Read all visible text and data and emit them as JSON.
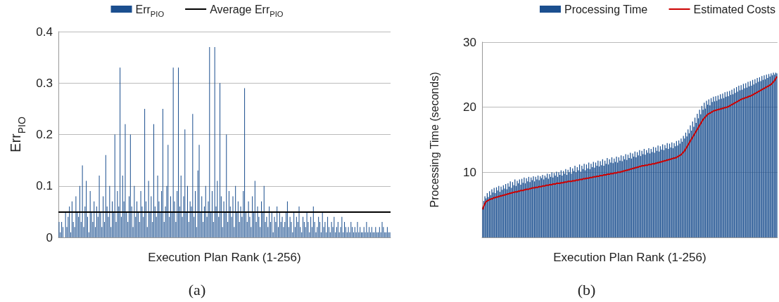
{
  "chart_data": [
    {
      "type": "bar",
      "title": "(a)",
      "xlabel": "Execution Plan Rank (1-256)",
      "ylabel": "Err$_{PIO}$",
      "ylim": [
        0,
        0.4
      ],
      "yticks": [
        0,
        0.1,
        0.2,
        0.3,
        0.4
      ],
      "grid": "y",
      "legend": "top",
      "categories": [
        null,
        null,
        null,
        null,
        null,
        null,
        null,
        null,
        null,
        null,
        null,
        null,
        null,
        null,
        null,
        null,
        null,
        null,
        null,
        null,
        null,
        null,
        null,
        null,
        null,
        null,
        null,
        null,
        null,
        null,
        null,
        null,
        null,
        null,
        null,
        null,
        null,
        null,
        null,
        null,
        null,
        null,
        null,
        null,
        null,
        null,
        null,
        null,
        null,
        null,
        null,
        null,
        null,
        null,
        null,
        null,
        null,
        null,
        null,
        null,
        null,
        null,
        null,
        null,
        null,
        null,
        null,
        null,
        null,
        null,
        null,
        null,
        null,
        null,
        null,
        null,
        null,
        null,
        null,
        null,
        null,
        null,
        null,
        null,
        null,
        null,
        null,
        null,
        null,
        null,
        null,
        null,
        null,
        null,
        null,
        null,
        null,
        null,
        null,
        null,
        null,
        null,
        null,
        null,
        null,
        null,
        null,
        null,
        null,
        null,
        null,
        null,
        null,
        null,
        null,
        null,
        null,
        null,
        null,
        null,
        null,
        null,
        null,
        null,
        null,
        null,
        null,
        null,
        null,
        null,
        null,
        null,
        null,
        null,
        null,
        null,
        null,
        null,
        null,
        null,
        null,
        null,
        null,
        null,
        null,
        null,
        null,
        null,
        null,
        null,
        null,
        null,
        null,
        null,
        null,
        null,
        null,
        null,
        null,
        null,
        null,
        null,
        null,
        null,
        null,
        null,
        null,
        null,
        null,
        null,
        null,
        null,
        null,
        null,
        null,
        null,
        null,
        null,
        null,
        null,
        null,
        null,
        null,
        null,
        null,
        null,
        null,
        null,
        null,
        null,
        null,
        null,
        null,
        null,
        null,
        null,
        null,
        null,
        null,
        null,
        null,
        null,
        null,
        null,
        null,
        null,
        null,
        null,
        null,
        null,
        null,
        null,
        null,
        null,
        null,
        null,
        null,
        null,
        null,
        null,
        null,
        null,
        null,
        null,
        null,
        null,
        null,
        null,
        null,
        null,
        null,
        null,
        null,
        null,
        null,
        null,
        null,
        null,
        null,
        null,
        null,
        null,
        null,
        null,
        null,
        null,
        null,
        null,
        null,
        null,
        null,
        null,
        null,
        null,
        null,
        null
      ],
      "series": [
        {
          "name": "Err$_{PIO}$",
          "color": "#1b4f8f",
          "values": [
            0.03,
            0.01,
            0.03,
            0.02,
            0.0,
            0.05,
            0.02,
            0.04,
            0.06,
            0.01,
            0.07,
            0.03,
            0.02,
            0.08,
            0.05,
            0.04,
            0.1,
            0.03,
            0.14,
            0.02,
            0.06,
            0.11,
            0.04,
            0.01,
            0.09,
            0.05,
            0.03,
            0.07,
            0.02,
            0.06,
            0.04,
            0.12,
            0.05,
            0.02,
            0.08,
            0.03,
            0.16,
            0.06,
            0.04,
            0.1,
            0.02,
            0.07,
            0.05,
            0.2,
            0.03,
            0.09,
            0.06,
            0.33,
            0.04,
            0.12,
            0.07,
            0.22,
            0.05,
            0.03,
            0.08,
            0.2,
            0.06,
            0.02,
            0.1,
            0.04,
            0.07,
            0.05,
            0.03,
            0.09,
            0.06,
            0.04,
            0.25,
            0.07,
            0.02,
            0.11,
            0.05,
            0.08,
            0.03,
            0.22,
            0.06,
            0.04,
            0.12,
            0.07,
            0.05,
            0.09,
            0.25,
            0.03,
            0.06,
            0.1,
            0.18,
            0.04,
            0.08,
            0.05,
            0.33,
            0.07,
            0.03,
            0.09,
            0.33,
            0.06,
            0.12,
            0.04,
            0.08,
            0.21,
            0.05,
            0.1,
            0.03,
            0.07,
            0.06,
            0.24,
            0.04,
            0.09,
            0.02,
            0.13,
            0.18,
            0.05,
            0.08,
            0.03,
            0.06,
            0.1,
            0.04,
            0.07,
            0.37,
            0.05,
            0.09,
            0.03,
            0.37,
            0.06,
            0.11,
            0.04,
            0.3,
            0.08,
            0.02,
            0.07,
            0.05,
            0.2,
            0.03,
            0.09,
            0.06,
            0.04,
            0.08,
            0.02,
            0.1,
            0.05,
            0.07,
            0.03,
            0.06,
            0.04,
            0.09,
            0.29,
            0.05,
            0.03,
            0.07,
            0.04,
            0.02,
            0.08,
            0.05,
            0.11,
            0.03,
            0.06,
            0.04,
            0.02,
            0.07,
            0.05,
            0.1,
            0.03,
            0.04,
            0.02,
            0.06,
            0.03,
            0.05,
            0.01,
            0.04,
            0.03,
            0.06,
            0.02,
            0.05,
            0.03,
            0.04,
            0.02,
            0.03,
            0.05,
            0.07,
            0.02,
            0.04,
            0.03,
            0.01,
            0.05,
            0.02,
            0.04,
            0.03,
            0.06,
            0.02,
            0.01,
            0.04,
            0.03,
            0.02,
            0.05,
            0.03,
            0.01,
            0.04,
            0.02,
            0.06,
            0.03,
            0.01,
            0.02,
            0.04,
            0.03,
            0.01,
            0.05,
            0.02,
            0.03,
            0.01,
            0.04,
            0.02,
            0.01,
            0.03,
            0.02,
            0.04,
            0.01,
            0.02,
            0.03,
            0.01,
            0.02,
            0.04,
            0.01,
            0.03,
            0.02,
            0.01,
            0.02,
            0.01,
            0.03,
            0.02,
            0.01,
            0.02,
            0.01,
            0.03,
            0.01,
            0.02,
            0.01,
            0.01,
            0.02,
            0.01,
            0.03,
            0.01,
            0.02,
            0.01,
            0.02,
            0.01,
            0.01,
            0.02,
            0.01,
            0.01,
            0.02,
            0.01,
            0.03,
            0.02,
            0.01,
            0.01,
            0.02,
            0.01,
            0.01
          ]
        }
      ],
      "ref_lines": [
        {
          "axis": "y",
          "value": 0.05,
          "label": "Average Err$_{PIO}$",
          "color": "#000000"
        }
      ]
    },
    {
      "type": "bar",
      "title": "(b)",
      "xlabel": "Execution Plan Rank (1-256)",
      "ylabel": "Processing Time (seconds)",
      "ylim": [
        0,
        30
      ],
      "yticks": [
        10,
        20,
        30
      ],
      "grid": "y",
      "legend": "top right",
      "categories": [
        null,
        null,
        null,
        null,
        null,
        null,
        null,
        null,
        null,
        null,
        null,
        null,
        null,
        null,
        null,
        null,
        null,
        null,
        null,
        null,
        null,
        null,
        null,
        null,
        null,
        null,
        null,
        null,
        null,
        null,
        null,
        null,
        null,
        null,
        null,
        null,
        null,
        null,
        null,
        null,
        null,
        null,
        null,
        null,
        null,
        null,
        null,
        null,
        null,
        null,
        null,
        null,
        null,
        null,
        null,
        null,
        null,
        null,
        null,
        null,
        null,
        null,
        null,
        null,
        null,
        null,
        null,
        null,
        null,
        null,
        null,
        null,
        null,
        null,
        null,
        null,
        null,
        null,
        null,
        null,
        null,
        null,
        null,
        null,
        null,
        null,
        null,
        null,
        null,
        null,
        null,
        null,
        null,
        null,
        null,
        null,
        null,
        null,
        null,
        null,
        null,
        null,
        null,
        null,
        null,
        null,
        null,
        null,
        null,
        null,
        null,
        null,
        null,
        null,
        null,
        null,
        null,
        null,
        null,
        null,
        null,
        null,
        null,
        null,
        null,
        null,
        null,
        null,
        null,
        null,
        null,
        null,
        null,
        null,
        null,
        null,
        null,
        null,
        null,
        null,
        null,
        null,
        null,
        null,
        null,
        null,
        null,
        null,
        null,
        null,
        null,
        null,
        null,
        null,
        null,
        null,
        null,
        null,
        null,
        null,
        null,
        null,
        null,
        null,
        null,
        null,
        null,
        null,
        null,
        null,
        null,
        null,
        null,
        null,
        null,
        null,
        null,
        null,
        null,
        null,
        null,
        null,
        null,
        null,
        null,
        null,
        null,
        null,
        null,
        null,
        null,
        null,
        null,
        null,
        null,
        null,
        null,
        null,
        null,
        null,
        null,
        null,
        null,
        null,
        null,
        null,
        null,
        null,
        null,
        null,
        null,
        null,
        null,
        null,
        null,
        null,
        null,
        null,
        null,
        null,
        null,
        null,
        null,
        null,
        null,
        null,
        null,
        null,
        null,
        null,
        null,
        null,
        null,
        null,
        null,
        null,
        null,
        null,
        null,
        null,
        null,
        null,
        null,
        null,
        null,
        null,
        null,
        null,
        null,
        null,
        null,
        null,
        null,
        null,
        null,
        null
      ],
      "marker": "none",
      "series": [
        {
          "name": "Processing Time",
          "color": "#1b4f8f",
          "values": [
            4.6,
            5.6,
            6.3,
            6.0,
            6.8,
            6.2,
            7.1,
            6.5,
            7.4,
            6.9,
            7.6,
            6.8,
            7.7,
            7.2,
            7.9,
            7.0,
            7.8,
            7.3,
            8.0,
            7.5,
            8.2,
            7.4,
            8.3,
            7.8,
            8.6,
            7.6,
            8.5,
            8.0,
            8.9,
            7.9,
            8.7,
            8.3,
            8.9,
            8.1,
            9.0,
            8.4,
            9.2,
            8.3,
            9.1,
            8.6,
            9.3,
            8.5,
            9.2,
            8.8,
            9.4,
            8.6,
            9.3,
            8.9,
            9.5,
            8.8,
            9.4,
            9.1,
            9.6,
            8.9,
            9.5,
            9.2,
            9.8,
            9.0,
            9.7,
            9.3,
            10.0,
            9.2,
            9.9,
            9.5,
            10.1,
            9.3,
            10.0,
            9.6,
            10.3,
            9.5,
            10.2,
            9.8,
            10.5,
            9.6,
            10.4,
            10.0,
            10.8,
            9.8,
            10.6,
            10.2,
            11.0,
            10.0,
            10.8,
            10.3,
            11.2,
            10.1,
            11.0,
            10.5,
            11.3,
            10.3,
            11.2,
            10.6,
            11.5,
            10.5,
            11.3,
            10.8,
            11.6,
            10.7,
            11.5,
            11.0,
            11.8,
            10.9,
            11.7,
            11.1,
            12.0,
            11.0,
            11.8,
            11.3,
            12.2,
            11.2,
            12.0,
            11.5,
            12.3,
            11.4,
            12.1,
            11.6,
            12.4,
            11.5,
            12.3,
            11.8,
            12.6,
            11.7,
            12.5,
            12.0,
            12.8,
            11.9,
            12.7,
            12.2,
            13.0,
            12.1,
            12.9,
            12.4,
            13.2,
            12.3,
            13.1,
            12.6,
            13.4,
            12.5,
            13.3,
            12.8,
            13.6,
            12.7,
            13.4,
            13.0,
            13.7,
            12.9,
            13.6,
            13.1,
            13.9,
            13.0,
            13.8,
            13.3,
            14.1,
            13.2,
            14.0,
            13.5,
            14.3,
            13.4,
            14.2,
            13.7,
            14.5,
            13.6,
            14.4,
            13.8,
            14.6,
            13.7,
            14.5,
            14.0,
            14.8,
            14.1,
            14.9,
            14.4,
            15.2,
            14.7,
            15.6,
            15.2,
            16.1,
            15.5,
            16.6,
            16.0,
            17.2,
            16.4,
            17.8,
            17.0,
            18.4,
            17.6,
            19.0,
            18.3,
            19.6,
            18.9,
            20.2,
            19.6,
            20.7,
            19.8,
            21.0,
            20.4,
            21.2,
            20.3,
            21.4,
            20.8,
            21.6,
            20.9,
            21.7,
            21.0,
            21.8,
            21.2,
            22.0,
            21.3,
            22.1,
            21.4,
            22.3,
            21.6,
            22.4,
            21.7,
            22.5,
            21.9,
            22.7,
            22.0,
            22.9,
            22.2,
            23.1,
            22.4,
            23.3,
            22.6,
            23.4,
            22.7,
            23.6,
            22.9,
            23.7,
            23.0,
            23.9,
            23.2,
            24.0,
            23.3,
            24.2,
            23.5,
            24.3,
            23.7,
            24.5,
            23.9,
            24.6,
            24.0,
            24.8,
            24.2,
            24.9,
            24.3,
            25.0,
            24.5,
            25.1,
            24.7,
            25.2,
            24.9,
            25.3,
            25.0,
            25.3,
            25.2
          ]
        },
        {
          "name": "Estimated Costs",
          "type": "line",
          "color": "#cc0000",
          "values": [
            4.3,
            4.8,
            5.2,
            5.5,
            5.6,
            5.7,
            5.8,
            5.9,
            5.9,
            6.0,
            6.1,
            6.1,
            6.2,
            6.2,
            6.3,
            6.3,
            6.4,
            6.4,
            6.5,
            6.5,
            6.6,
            6.6,
            6.7,
            6.7,
            6.8,
            6.8,
            6.9,
            6.9,
            7.0,
            7.0,
            7.0,
            7.1,
            7.1,
            7.2,
            7.2,
            7.2,
            7.3,
            7.3,
            7.4,
            7.4,
            7.4,
            7.5,
            7.5,
            7.6,
            7.6,
            7.6,
            7.7,
            7.7,
            7.7,
            7.8,
            7.8,
            7.8,
            7.9,
            7.9,
            7.9,
            8.0,
            8.0,
            8.0,
            8.1,
            8.1,
            8.1,
            8.2,
            8.2,
            8.2,
            8.3,
            8.3,
            8.3,
            8.3,
            8.4,
            8.4,
            8.4,
            8.5,
            8.5,
            8.5,
            8.6,
            8.6,
            8.6,
            8.6,
            8.7,
            8.7,
            8.7,
            8.8,
            8.8,
            8.8,
            8.9,
            8.9,
            8.9,
            9.0,
            9.0,
            9.0,
            9.1,
            9.1,
            9.1,
            9.2,
            9.2,
            9.2,
            9.3,
            9.3,
            9.3,
            9.4,
            9.4,
            9.4,
            9.5,
            9.5,
            9.5,
            9.6,
            9.6,
            9.6,
            9.7,
            9.7,
            9.7,
            9.8,
            9.8,
            9.8,
            9.9,
            9.9,
            9.9,
            10.0,
            10.0,
            10.0,
            10.1,
            10.1,
            10.2,
            10.2,
            10.3,
            10.3,
            10.4,
            10.4,
            10.5,
            10.5,
            10.6,
            10.6,
            10.7,
            10.7,
            10.8,
            10.8,
            10.9,
            10.9,
            11.0,
            11.0,
            11.0,
            11.1,
            11.1,
            11.1,
            11.2,
            11.2,
            11.2,
            11.3,
            11.3,
            11.3,
            11.4,
            11.4,
            11.5,
            11.5,
            11.6,
            11.6,
            11.7,
            11.7,
            11.8,
            11.8,
            11.9,
            11.9,
            12.0,
            12.0,
            12.1,
            12.1,
            12.2,
            12.2,
            12.3,
            12.4,
            12.5,
            12.6,
            12.7,
            12.9,
            13.1,
            13.3,
            13.6,
            13.9,
            14.2,
            14.5,
            14.8,
            15.1,
            15.4,
            15.7,
            16.0,
            16.3,
            16.6,
            16.9,
            17.2,
            17.5,
            17.8,
            18.1,
            18.3,
            18.5,
            18.7,
            18.9,
            19.0,
            19.1,
            19.2,
            19.3,
            19.4,
            19.5,
            19.5,
            19.6,
            19.6,
            19.7,
            19.7,
            19.8,
            19.8,
            19.9,
            19.9,
            20.0,
            20.0,
            20.1,
            20.2,
            20.3,
            20.4,
            20.5,
            20.6,
            20.7,
            20.8,
            20.9,
            21.0,
            21.1,
            21.2,
            21.3,
            21.3,
            21.4,
            21.5,
            21.5,
            21.6,
            21.7,
            21.7,
            21.8,
            21.9,
            22.0,
            22.1,
            22.2,
            22.3,
            22.4,
            22.5,
            22.6,
            22.7,
            22.8,
            22.9,
            23.0,
            23.1,
            23.2,
            23.3,
            23.4,
            23.5,
            23.7,
            23.9,
            24.1,
            24.4,
            24.7
          ]
        }
      ]
    }
  ]
}
